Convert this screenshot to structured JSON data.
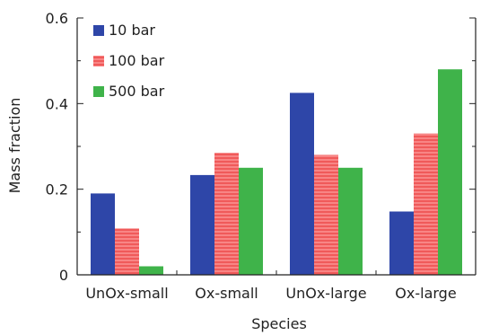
{
  "chart_data": {
    "type": "bar",
    "title": "",
    "xlabel": "Species",
    "ylabel": "Mass fraction",
    "categories": [
      "UnOx-small",
      "Ox-small",
      "UnOx-large",
      "Ox-large"
    ],
    "series": [
      {
        "name": "10 bar",
        "color": "#2e46a8",
        "pattern": "solid",
        "values": [
          0.19,
          0.233,
          0.425,
          0.148
        ]
      },
      {
        "name": "100 bar",
        "color": "#f05a5a",
        "pattern": "hatched",
        "values": [
          0.108,
          0.285,
          0.28,
          0.33
        ]
      },
      {
        "name": "500 bar",
        "color": "#3fb34a",
        "pattern": "solid",
        "values": [
          0.02,
          0.25,
          0.25,
          0.48
        ]
      }
    ],
    "ylim": [
      0,
      0.6
    ],
    "yticks": [
      0,
      0.2,
      0.4,
      0.6
    ],
    "ytick_labels": [
      "0",
      "0.2",
      "0.4",
      "0.6"
    ],
    "grid": false,
    "legend_position": "top-left"
  }
}
